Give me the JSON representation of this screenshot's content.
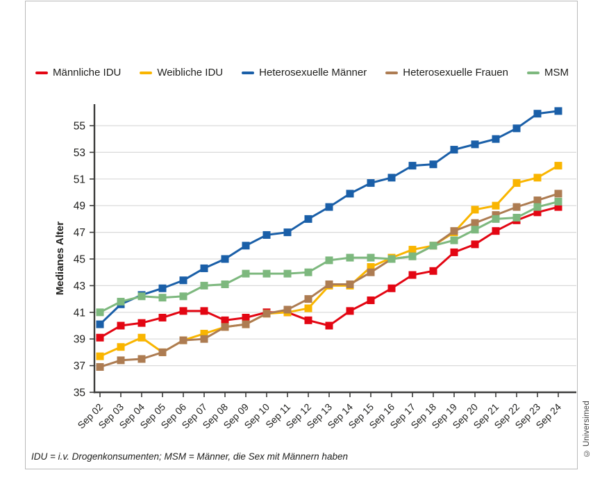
{
  "page": {
    "footnote": "IDU = i.v. Drogenkonsumenten; MSM = Männer, die Sex mit Männern haben",
    "copyright": "© Universimed"
  },
  "colors": {
    "grid": "#d9d9d9",
    "axis": "#3c3c3b",
    "text": "#1d1d1b"
  },
  "chart_data": {
    "type": "line",
    "title": "",
    "xlabel": "",
    "ylabel": "Medianes Alter",
    "ylim": [
      35,
      56.8
    ],
    "yticks": [
      35,
      37,
      39,
      41,
      43,
      45,
      47,
      49,
      51,
      53,
      55
    ],
    "grid": "horizontal",
    "legend_position": "top",
    "marker": "square",
    "categories": [
      "Sep 02",
      "Sep 03",
      "Sep 04",
      "Sep 05",
      "Sep 06",
      "Sep 07",
      "Sep 08",
      "Sep 09",
      "Sep 10",
      "Sep 11",
      "Sep 12",
      "Sep 13",
      "Sep 14",
      "Sep 15",
      "Sep 16",
      "Sep 17",
      "Sep 18",
      "Sep 19",
      "Sep 20",
      "Sep 21",
      "Sep 22",
      "Sep 23",
      "Sep 24"
    ],
    "series": [
      {
        "name": "Männliche IDU",
        "color": "#e30613",
        "values": [
          39.1,
          40.0,
          40.2,
          40.6,
          41.1,
          41.1,
          40.4,
          40.6,
          41.0,
          41.0,
          40.4,
          40.0,
          41.1,
          41.9,
          42.8,
          43.8,
          44.1,
          45.5,
          46.1,
          47.1,
          47.9,
          48.5,
          48.9
        ]
      },
      {
        "name": "Weibliche IDU",
        "color": "#f9b500",
        "values": [
          37.7,
          38.4,
          39.1,
          38.0,
          38.9,
          39.4,
          39.9,
          40.1,
          40.9,
          41.0,
          41.3,
          43.0,
          43.0,
          44.4,
          45.1,
          45.7,
          46.0,
          47.0,
          48.7,
          49.0,
          50.7,
          51.1,
          52.0
        ]
      },
      {
        "name": "Heterosexuelle Männer",
        "color": "#1a5fa8",
        "values": [
          40.1,
          41.6,
          42.3,
          42.8,
          43.4,
          44.3,
          45.0,
          46.0,
          46.8,
          47.0,
          48.0,
          48.9,
          49.9,
          50.7,
          51.1,
          52.0,
          52.1,
          53.2,
          53.6,
          54.0,
          54.8,
          55.9,
          56.1
        ]
      },
      {
        "name": "Heterosexuelle Frauen",
        "color": "#ad7c52",
        "values": [
          36.9,
          37.4,
          37.5,
          38.0,
          38.9,
          39.0,
          39.9,
          40.1,
          40.9,
          41.2,
          42.0,
          43.1,
          43.1,
          44.0,
          45.0,
          45.2,
          46.0,
          47.1,
          47.7,
          48.3,
          48.9,
          49.4,
          49.9
        ]
      },
      {
        "name": "MSM",
        "color": "#7db87e",
        "values": [
          41.0,
          41.8,
          42.2,
          42.1,
          42.2,
          43.0,
          43.1,
          43.9,
          43.9,
          43.9,
          44.0,
          44.9,
          45.1,
          45.1,
          45.0,
          45.2,
          46.0,
          46.4,
          47.2,
          48.0,
          48.1,
          48.9,
          49.3
        ]
      }
    ]
  }
}
